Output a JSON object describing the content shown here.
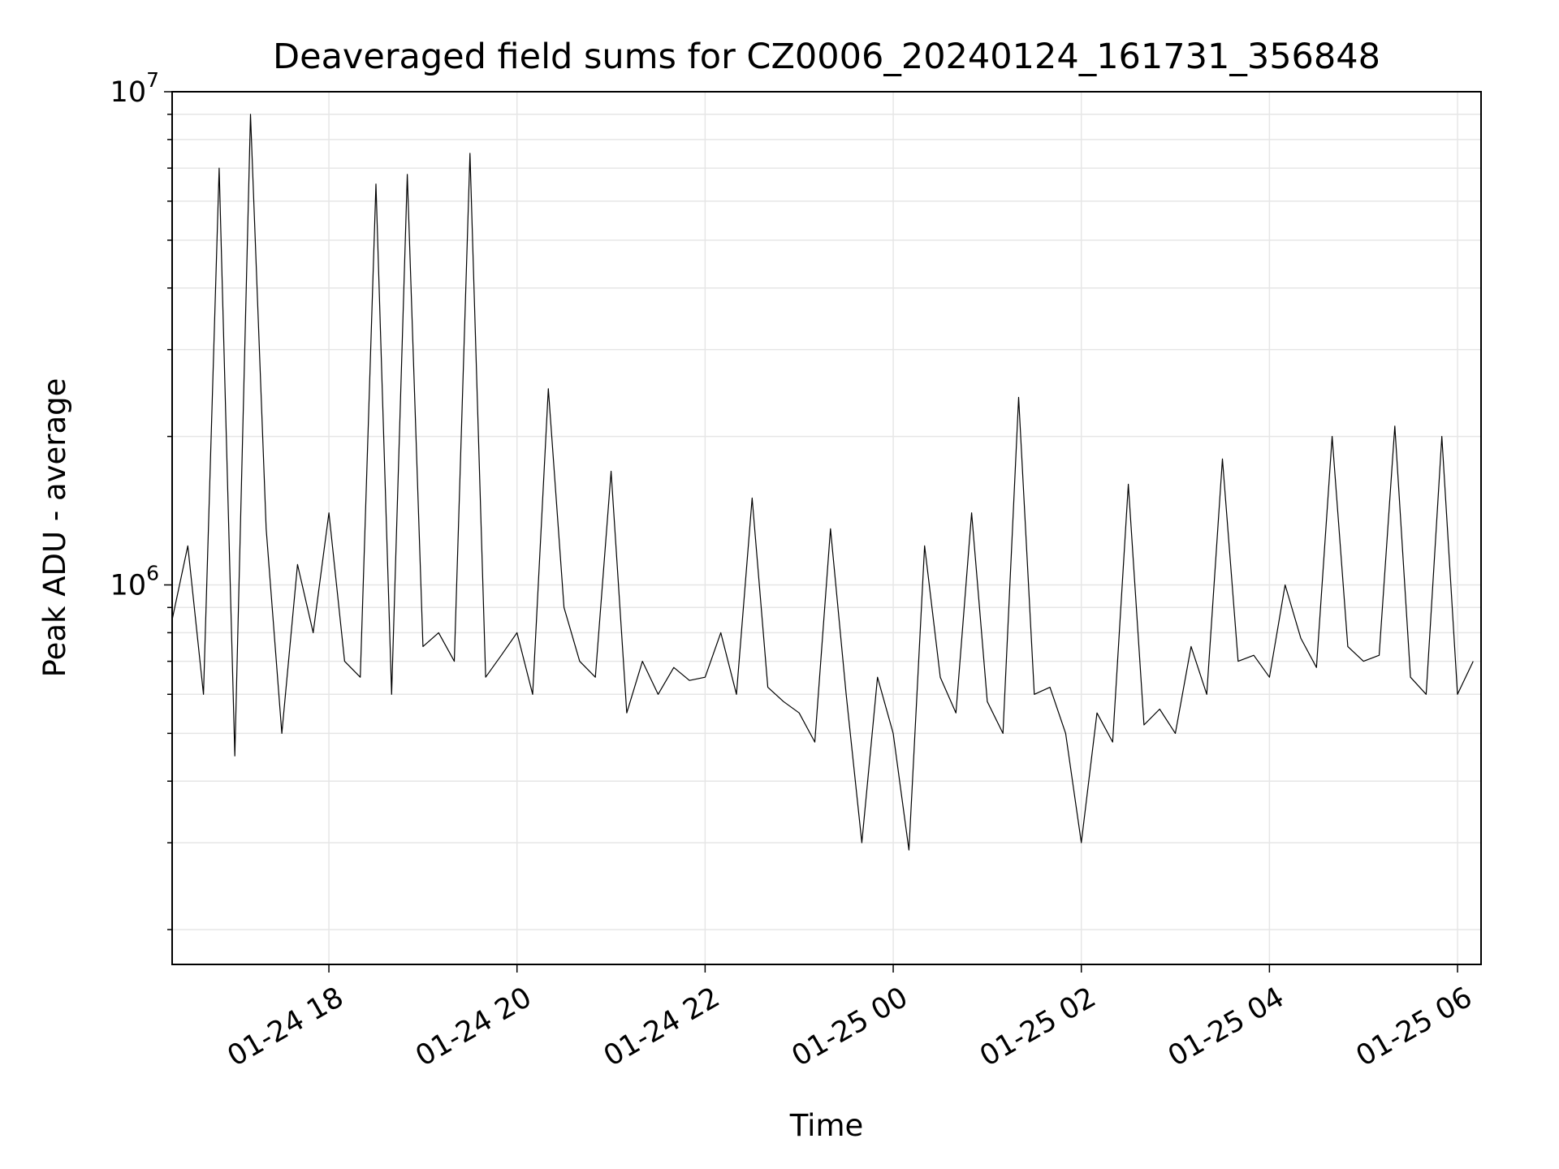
{
  "chart_data": {
    "type": "line",
    "title": "Deaveraged field sums for CZ0006_20240124_161731_356848",
    "xlabel": "Time",
    "ylabel": "Peak ADU - average",
    "x_range": [
      "2024-01-24 16:20",
      "2024-01-25 06:15"
    ],
    "ylim": [
      170000,
      10000000
    ],
    "yscale": "log",
    "x_ticks": [
      {
        "value": "2024-01-24 18:00",
        "label": "01-24 18"
      },
      {
        "value": "2024-01-24 20:00",
        "label": "01-24 20"
      },
      {
        "value": "2024-01-24 22:00",
        "label": "01-24 22"
      },
      {
        "value": "2024-01-25 00:00",
        "label": "01-25 00"
      },
      {
        "value": "2024-01-25 02:00",
        "label": "01-25 02"
      },
      {
        "value": "2024-01-25 04:00",
        "label": "01-25 04"
      },
      {
        "value": "2024-01-25 06:00",
        "label": "01-25 06"
      }
    ],
    "y_ticks": [
      {
        "value": 1000000,
        "base": "10",
        "exp": "6"
      },
      {
        "value": 10000000,
        "base": "10",
        "exp": "7"
      }
    ],
    "grid": true,
    "line_color": "#000000",
    "series": [
      {
        "x": [
          "2024-01-24 16:20",
          "2024-01-24 16:30",
          "2024-01-24 16:40",
          "2024-01-24 16:50",
          "2024-01-24 17:00",
          "2024-01-24 17:10",
          "2024-01-24 17:20",
          "2024-01-24 17:30",
          "2024-01-24 17:40",
          "2024-01-24 17:50",
          "2024-01-24 18:00",
          "2024-01-24 18:10",
          "2024-01-24 18:20",
          "2024-01-24 18:30",
          "2024-01-24 18:40",
          "2024-01-24 18:50",
          "2024-01-24 19:00",
          "2024-01-24 19:10",
          "2024-01-24 19:20",
          "2024-01-24 19:30",
          "2024-01-24 19:40",
          "2024-01-24 19:50",
          "2024-01-24 20:00",
          "2024-01-24 20:10",
          "2024-01-24 20:20",
          "2024-01-24 20:30",
          "2024-01-24 20:40",
          "2024-01-24 20:50",
          "2024-01-24 21:00",
          "2024-01-24 21:10",
          "2024-01-24 21:20",
          "2024-01-24 21:30",
          "2024-01-24 21:40",
          "2024-01-24 21:50",
          "2024-01-24 22:00",
          "2024-01-24 22:10",
          "2024-01-24 22:20",
          "2024-01-24 22:30",
          "2024-01-24 22:40",
          "2024-01-24 22:50",
          "2024-01-24 23:00",
          "2024-01-24 23:10",
          "2024-01-24 23:20",
          "2024-01-24 23:30",
          "2024-01-24 23:40",
          "2024-01-24 23:50",
          "2024-01-25 00:00",
          "2024-01-25 00:10",
          "2024-01-25 00:20",
          "2024-01-25 00:30",
          "2024-01-25 00:40",
          "2024-01-25 00:50",
          "2024-01-25 01:00",
          "2024-01-25 01:10",
          "2024-01-25 01:20",
          "2024-01-25 01:30",
          "2024-01-25 01:40",
          "2024-01-25 01:50",
          "2024-01-25 02:00",
          "2024-01-25 02:10",
          "2024-01-25 02:20",
          "2024-01-25 02:30",
          "2024-01-25 02:40",
          "2024-01-25 02:50",
          "2024-01-25 03:00",
          "2024-01-25 03:10",
          "2024-01-25 03:20",
          "2024-01-25 03:30",
          "2024-01-25 03:40",
          "2024-01-25 03:50",
          "2024-01-25 04:00",
          "2024-01-25 04:10",
          "2024-01-25 04:20",
          "2024-01-25 04:30",
          "2024-01-25 04:40",
          "2024-01-25 04:50",
          "2024-01-25 05:00",
          "2024-01-25 05:10",
          "2024-01-25 05:20",
          "2024-01-25 05:30",
          "2024-01-25 05:40",
          "2024-01-25 05:50",
          "2024-01-25 06:00",
          "2024-01-25 06:10"
        ],
        "y": [
          850000,
          1200000,
          600000,
          7000000,
          450000,
          9000000,
          1300000,
          500000,
          1100000,
          800000,
          1400000,
          700000,
          650000,
          6500000,
          600000,
          6800000,
          750000,
          800000,
          700000,
          7500000,
          650000,
          720000,
          800000,
          600000,
          2500000,
          900000,
          700000,
          650000,
          1700000,
          550000,
          700000,
          600000,
          680000,
          640000,
          650000,
          800000,
          600000,
          1500000,
          620000,
          580000,
          550000,
          480000,
          1300000,
          600000,
          300000,
          650000,
          500000,
          290000,
          1200000,
          650000,
          550000,
          1400000,
          580000,
          500000,
          2400000,
          600000,
          620000,
          500000,
          300000,
          550000,
          480000,
          1600000,
          520000,
          560000,
          500000,
          750000,
          600000,
          1800000,
          700000,
          720000,
          650000,
          1000000,
          780000,
          680000,
          2000000,
          750000,
          700000,
          720000,
          2100000,
          650000,
          600000,
          2000000,
          600000,
          700000
        ]
      }
    ]
  }
}
